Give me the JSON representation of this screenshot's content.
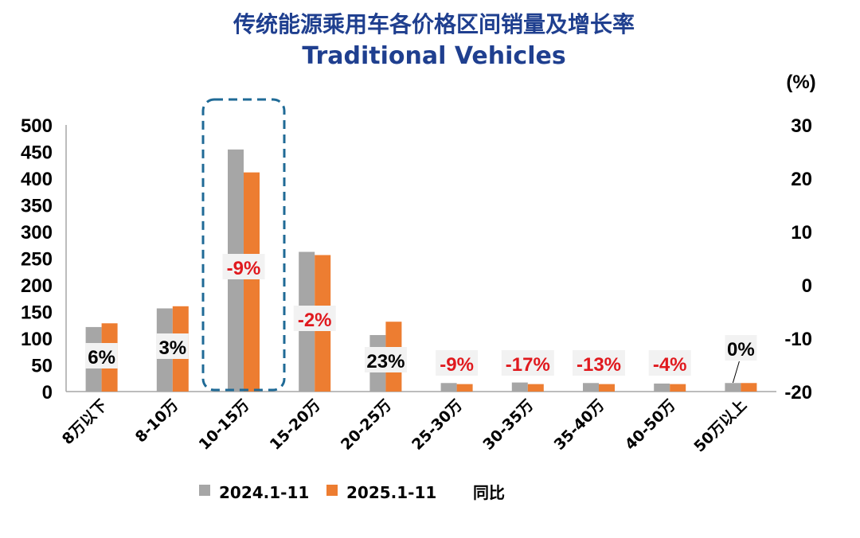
{
  "chart_data": {
    "type": "bar",
    "title": "传统能源乘用车各价格区间销量及增长率",
    "subtitle": "Traditional Vehicles",
    "categories": [
      "8万以下",
      "8-10万",
      "10-15万",
      "15-20万",
      "20-25万",
      "25-30万",
      "30-35万",
      "35-40万",
      "40-50万",
      "50万以上"
    ],
    "series": [
      {
        "name": "2024.1-11",
        "color": "#A6A6A6",
        "values": [
          121,
          156,
          454,
          262,
          106,
          16,
          17,
          16,
          15,
          16
        ]
      },
      {
        "name": "2025.1-11",
        "color": "#ED7D31",
        "values": [
          128,
          160,
          411,
          256,
          131,
          14,
          14,
          14,
          14,
          16
        ]
      }
    ],
    "growth": {
      "name": "同比",
      "labels": [
        "6%",
        "3%",
        "-9%",
        "-2%",
        "23%",
        "-9%",
        "-17%",
        "-13%",
        "-4%",
        "0%"
      ],
      "negative_color": "#E0191E",
      "positive_color": "#000000"
    },
    "y_left": {
      "min": 0,
      "max": 500,
      "ticks": [
        "0",
        "50",
        "100",
        "150",
        "200",
        "250",
        "300",
        "350",
        "400",
        "450",
        "500"
      ]
    },
    "y_right": {
      "min": -20,
      "max": 30,
      "unit": "(%)",
      "ticks": [
        "-20",
        "-10",
        "0",
        "10",
        "20",
        "30"
      ]
    },
    "highlight": {
      "category": "10-15万",
      "color": "#1F6A96"
    }
  }
}
